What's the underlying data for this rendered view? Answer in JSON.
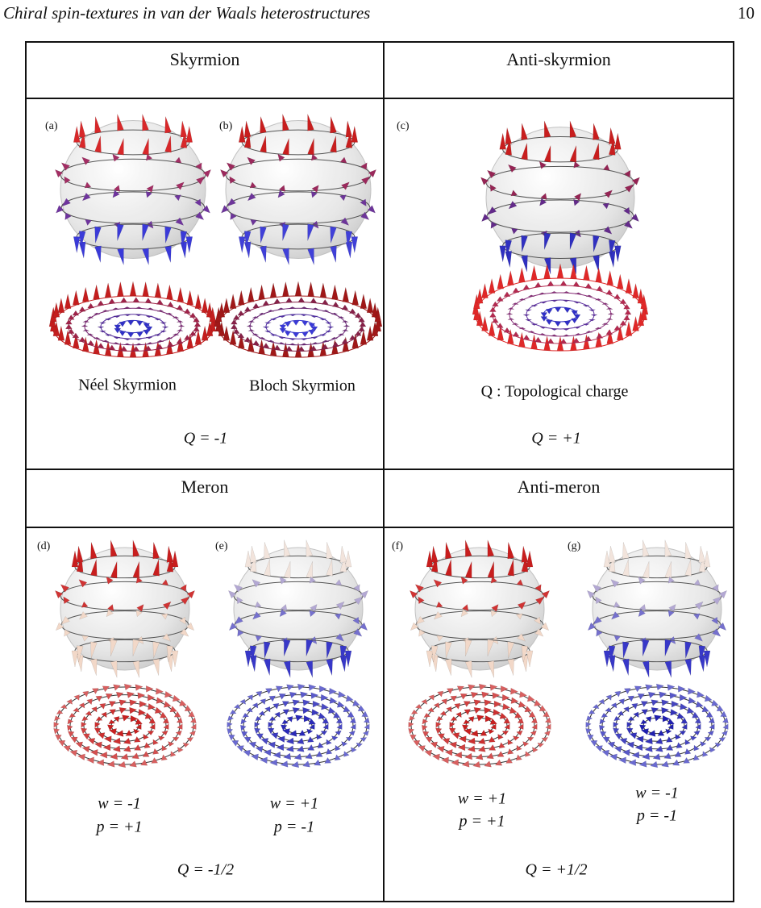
{
  "header": {
    "title": "Chiral spin-textures in van der Waals heterostructures",
    "page": "10"
  },
  "figure": {
    "cells": [
      {
        "title": "Skyrmion",
        "panels": [
          {
            "label": "(a)",
            "caption": "Néel Skyrmion"
          },
          {
            "label": "(b)",
            "caption": "Bloch Skyrmion"
          }
        ],
        "charge": "Q = -1"
      },
      {
        "title": "Anti-skyrmion",
        "panels": [
          {
            "label": "(c)"
          }
        ],
        "note": "Q : Topological charge",
        "charge": "Q = +1"
      },
      {
        "title": "Meron",
        "panels": [
          {
            "label": "(d)",
            "w": "w = -1",
            "p": "p =  +1"
          },
          {
            "label": "(e)",
            "w": "w = +1",
            "p": "p =  -1"
          }
        ],
        "charge": "Q = -1/2"
      },
      {
        "title": "Anti-meron",
        "panels": [
          {
            "label": "(f)",
            "w": "w = +1",
            "p": "p =  +1"
          },
          {
            "label": "(g)",
            "w": "w = -1",
            "p": "p =  -1"
          }
        ],
        "charge": "Q = +1/2"
      }
    ]
  }
}
